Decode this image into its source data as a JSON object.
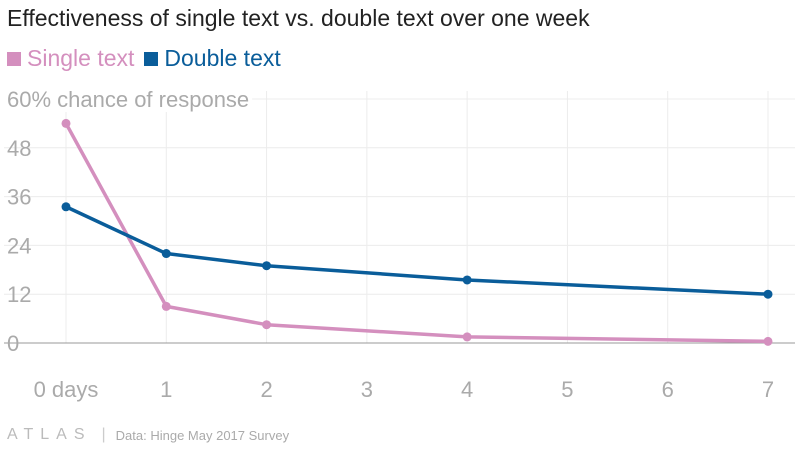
{
  "chart_data": {
    "type": "line",
    "title": "Effectiveness of single text vs. double text over one week",
    "y_title": "60% chance of response",
    "x": [
      0,
      1,
      2,
      3,
      4,
      5,
      6,
      7
    ],
    "x_tick_labels": [
      "0 days",
      "1",
      "2",
      "3",
      "4",
      "5",
      "6",
      "7"
    ],
    "y_ticks": [
      0,
      12,
      24,
      36,
      48
    ],
    "ylim": [
      0,
      60
    ],
    "xlim": [
      0,
      7
    ],
    "grid": true,
    "legend_position": "top-left",
    "series": [
      {
        "name": "Single text",
        "color": "#d48fbe",
        "x": [
          0,
          1,
          2,
          4,
          7
        ],
        "values": [
          54,
          9,
          4.5,
          1.5,
          0.4
        ]
      },
      {
        "name": "Double text",
        "color": "#0a5d9a",
        "x": [
          0,
          1,
          2,
          4,
          7
        ],
        "values": [
          33.5,
          22,
          19,
          15.5,
          12
        ]
      }
    ]
  },
  "footer": {
    "logo": "ATLAS",
    "separator": "|",
    "source": "Data: Hinge May 2017 Survey"
  }
}
